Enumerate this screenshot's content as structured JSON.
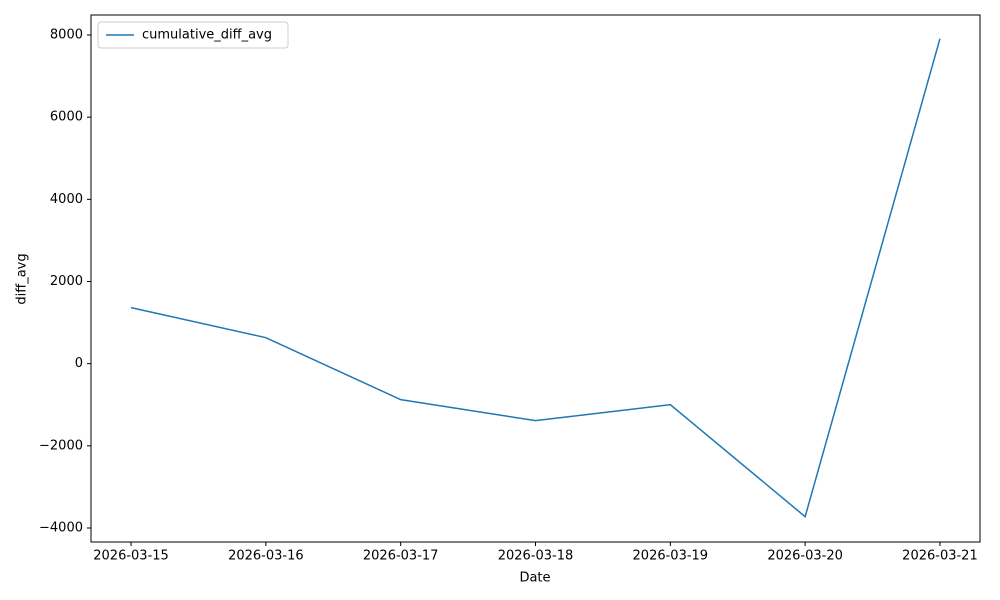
{
  "chart_data": {
    "type": "line",
    "x_label": "Date",
    "y_label": "diff_avg",
    "categories": [
      "2026-03-15",
      "2026-03-16",
      "2026-03-17",
      "2026-03-18",
      "2026-03-19",
      "2026-03-20",
      "2026-03-21"
    ],
    "series": [
      {
        "name": "cumulative_diff_avg",
        "color": "#1f77b4",
        "values": [
          1363,
          633,
          -876,
          -1387,
          -998,
          -3724,
          7911
        ]
      }
    ],
    "ylim": [
      -4341,
      8487
    ],
    "yticks": [
      {
        "value": -4000,
        "label": "−4000"
      },
      {
        "value": -2000,
        "label": "−2000"
      },
      0,
      2000,
      4000,
      6000,
      8000
    ],
    "grid": false,
    "legend": "upper left"
  }
}
